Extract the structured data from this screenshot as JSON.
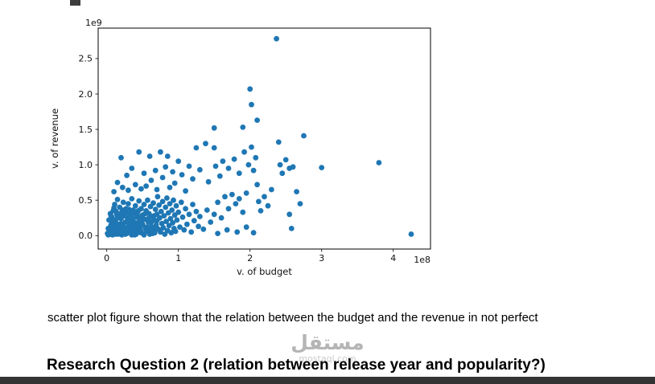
{
  "page": {
    "caption": "scatter plot figure shown that the relation between the budget and the revenue in not perfect",
    "heading": "Research Question 2 (relation between release year and popularity?)",
    "watermark": {
      "arabic": "مستقل",
      "domain": "mostaql.com"
    }
  },
  "chart_data": {
    "type": "scatter",
    "title": "",
    "xlabel": "v. of budget",
    "ylabel": "v. of revenue",
    "x_offset_label": "1e8",
    "y_offset_label": "1e9",
    "xtick_values": [
      0,
      1,
      2,
      3,
      4
    ],
    "xtick_labels": [
      "0",
      "1",
      "2",
      "3",
      "4"
    ],
    "ytick_values": [
      0,
      0.5,
      1,
      1.5,
      2,
      2.5
    ],
    "ytick_labels": [
      "0.0",
      "0.5",
      "1.0",
      "1.5",
      "2.0",
      "2.5"
    ],
    "xlim": [
      -0.12,
      4.52
    ],
    "ylim": [
      -0.19,
      2.93
    ],
    "grid": false,
    "legend": "none",
    "marker_color": "#1f77b4",
    "points": [
      [
        0.01,
        0.03
      ],
      [
        0.02,
        0.1
      ],
      [
        0.03,
        0.22
      ],
      [
        0.04,
        0.06
      ],
      [
        0.05,
        0.31
      ],
      [
        0.06,
        0.15
      ],
      [
        0.07,
        0.26
      ],
      [
        0.08,
        0.01
      ],
      [
        0.09,
        0.12
      ],
      [
        0.1,
        0.39
      ],
      [
        0.11,
        0.05
      ],
      [
        0.12,
        0.2
      ],
      [
        0.13,
        0.34
      ],
      [
        0.14,
        0.08
      ],
      [
        0.15,
        0.27
      ],
      [
        0.16,
        0.02
      ],
      [
        0.17,
        0.16
      ],
      [
        0.18,
        0.3
      ],
      [
        0.19,
        0.11
      ],
      [
        0.2,
        0.24
      ],
      [
        0.21,
        0.01
      ],
      [
        0.22,
        0.36
      ],
      [
        0.23,
        0.14
      ],
      [
        0.24,
        0.29
      ],
      [
        0.25,
        0.07
      ],
      [
        0.26,
        0.19
      ],
      [
        0.27,
        0.33
      ],
      [
        0.28,
        0.03
      ],
      [
        0.29,
        0.25
      ],
      [
        0.3,
        0.1
      ],
      [
        0.31,
        0.37
      ],
      [
        0.32,
        0.05
      ],
      [
        0.33,
        0.17
      ],
      [
        0.34,
        0.29
      ],
      [
        0.35,
        0.01
      ],
      [
        0.36,
        0.23
      ],
      [
        0.37,
        0.12
      ],
      [
        0.38,
        0.32
      ],
      [
        0.39,
        0.07
      ],
      [
        0.4,
        0.18
      ],
      [
        0.41,
        0.02
      ],
      [
        0.42,
        0.28
      ],
      [
        0.43,
        0.15
      ],
      [
        0.44,
        0.35
      ],
      [
        0.45,
        0.09
      ],
      [
        0.46,
        0.26
      ],
      [
        0.47,
        0.13
      ],
      [
        0.48,
        0.04
      ],
      [
        0.49,
        0.22
      ],
      [
        0.5,
        0.16
      ],
      [
        0.52,
        0.01
      ],
      [
        0.54,
        0.31
      ],
      [
        0.56,
        0.12
      ],
      [
        0.58,
        0.24
      ],
      [
        0.6,
        0.07
      ],
      [
        0.62,
        0.19
      ],
      [
        0.64,
        0.03
      ],
      [
        0.66,
        0.28
      ],
      [
        0.68,
        0.11
      ],
      [
        0.7,
        0.21
      ],
      [
        0.02,
        0.01
      ],
      [
        0.03,
        0.05
      ],
      [
        0.05,
        0.02
      ],
      [
        0.05,
        0.12
      ],
      [
        0.06,
        0.28
      ],
      [
        0.07,
        0.04
      ],
      [
        0.08,
        0.18
      ],
      [
        0.09,
        0.35
      ],
      [
        0.1,
        0.07
      ],
      [
        0.1,
        0.22
      ],
      [
        0.11,
        0.44
      ],
      [
        0.12,
        0.02
      ],
      [
        0.13,
        0.15
      ],
      [
        0.14,
        0.3
      ],
      [
        0.15,
        0.05
      ],
      [
        0.15,
        0.51
      ],
      [
        0.16,
        0.1
      ],
      [
        0.17,
        0.25
      ],
      [
        0.18,
        0.4
      ],
      [
        0.19,
        0.03
      ],
      [
        0.2,
        0.17
      ],
      [
        0.21,
        0.33
      ],
      [
        0.22,
        0.08
      ],
      [
        0.23,
        0.47
      ],
      [
        0.24,
        0.12
      ],
      [
        0.25,
        0.28
      ],
      [
        0.26,
        0.02
      ],
      [
        0.27,
        0.38
      ],
      [
        0.28,
        0.2
      ],
      [
        0.29,
        0.06
      ],
      [
        0.3,
        0.45
      ],
      [
        0.31,
        0.14
      ],
      [
        0.32,
        0.31
      ],
      [
        0.33,
        0.04
      ],
      [
        0.34,
        0.24
      ],
      [
        0.35,
        0.52
      ],
      [
        0.36,
        0.09
      ],
      [
        0.37,
        0.36
      ],
      [
        0.38,
        0.18
      ],
      [
        0.39,
        0.01
      ],
      [
        0.4,
        0.42
      ],
      [
        0.41,
        0.26
      ],
      [
        0.42,
        0.11
      ],
      [
        0.43,
        0.33
      ],
      [
        0.44,
        0.05
      ],
      [
        0.45,
        0.49
      ],
      [
        0.46,
        0.21
      ],
      [
        0.47,
        0.07
      ],
      [
        0.48,
        0.38
      ],
      [
        0.49,
        0.16
      ],
      [
        0.5,
        0.29
      ],
      [
        0.51,
        0.03
      ],
      [
        0.52,
        0.44
      ],
      [
        0.53,
        0.23
      ],
      [
        0.54,
        0.1
      ],
      [
        0.55,
        0.35
      ],
      [
        0.56,
        0.06
      ],
      [
        0.57,
        0.5
      ],
      [
        0.58,
        0.19
      ],
      [
        0.59,
        0.31
      ],
      [
        0.6,
        0.02
      ],
      [
        0.61,
        0.41
      ],
      [
        0.62,
        0.13
      ],
      [
        0.63,
        0.27
      ],
      [
        0.64,
        0.08
      ],
      [
        0.65,
        0.46
      ],
      [
        0.66,
        0.22
      ],
      [
        0.67,
        0.04
      ],
      [
        0.68,
        0.37
      ],
      [
        0.69,
        0.15
      ],
      [
        0.7,
        0.3
      ],
      [
        0.71,
        0.55
      ],
      [
        0.72,
        0.09
      ],
      [
        0.73,
        0.43
      ],
      [
        0.74,
        0.25
      ],
      [
        0.75,
        0.05
      ],
      [
        0.76,
        0.34
      ],
      [
        0.77,
        0.17
      ],
      [
        0.78,
        0.48
      ],
      [
        0.79,
        0.11
      ],
      [
        0.8,
        0.28
      ],
      [
        0.81,
        0.02
      ],
      [
        0.82,
        0.4
      ],
      [
        0.83,
        0.2
      ],
      [
        0.84,
        0.53
      ],
      [
        0.85,
        0.07
      ],
      [
        0.86,
        0.32
      ],
      [
        0.87,
        0.14
      ],
      [
        0.88,
        0.45
      ],
      [
        0.89,
        0.24
      ],
      [
        0.9,
        0.04
      ],
      [
        0.91,
        0.36
      ],
      [
        0.92,
        0.18
      ],
      [
        0.93,
        0.5
      ],
      [
        0.94,
        0.1
      ],
      [
        0.95,
        0.29
      ],
      [
        0.96,
        0.06
      ],
      [
        0.97,
        0.42
      ],
      [
        0.98,
        0.22
      ],
      [
        1.0,
        0.33
      ],
      [
        1.02,
        0.12
      ],
      [
        1.04,
        0.47
      ],
      [
        1.06,
        0.26
      ],
      [
        1.08,
        0.08
      ],
      [
        1.1,
        0.38
      ],
      [
        1.12,
        0.16
      ],
      [
        1.15,
        0.3
      ],
      [
        1.18,
        0.05
      ],
      [
        1.2,
        0.44
      ],
      [
        1.22,
        0.21
      ],
      [
        1.25,
        0.34
      ],
      [
        1.28,
        0.13
      ],
      [
        1.3,
        0.27
      ],
      [
        1.35,
        0.09
      ],
      [
        1.4,
        0.36
      ],
      [
        1.45,
        0.19
      ],
      [
        1.5,
        0.3
      ],
      [
        1.55,
        0.47
      ],
      [
        1.6,
        0.25
      ],
      [
        1.65,
        0.55
      ],
      [
        1.7,
        0.38
      ],
      [
        1.75,
        0.58
      ],
      [
        1.8,
        0.45
      ],
      [
        1.85,
        0.52
      ],
      [
        1.9,
        0.33
      ],
      [
        1.95,
        0.6
      ],
      [
        0.1,
        0.62
      ],
      [
        0.15,
        0.75
      ],
      [
        0.2,
        1.1
      ],
      [
        0.22,
        0.68
      ],
      [
        0.28,
        0.85
      ],
      [
        0.3,
        0.64
      ],
      [
        0.35,
        0.95
      ],
      [
        0.4,
        0.72
      ],
      [
        0.45,
        1.18
      ],
      [
        0.48,
        0.66
      ],
      [
        0.52,
        0.88
      ],
      [
        0.55,
        0.7
      ],
      [
        0.6,
        1.12
      ],
      [
        0.62,
        0.78
      ],
      [
        0.68,
        0.92
      ],
      [
        0.7,
        0.65
      ],
      [
        0.75,
        1.18
      ],
      [
        0.78,
        0.82
      ],
      [
        0.82,
        0.97
      ],
      [
        0.85,
        1.12
      ],
      [
        0.88,
        0.68
      ],
      [
        0.92,
        0.9
      ],
      [
        0.95,
        0.74
      ],
      [
        1.0,
        1.05
      ],
      [
        1.05,
        0.86
      ],
      [
        1.1,
        0.63
      ],
      [
        1.15,
        0.98
      ],
      [
        1.2,
        0.8
      ],
      [
        1.25,
        1.24
      ],
      [
        1.3,
        0.93
      ],
      [
        1.38,
        1.3
      ],
      [
        1.42,
        0.76
      ],
      [
        1.5,
        1.24
      ],
      [
        1.52,
        0.98
      ],
      [
        1.58,
        0.84
      ],
      [
        1.62,
        1.05
      ],
      [
        1.7,
        0.95
      ],
      [
        1.78,
        1.08
      ],
      [
        1.85,
        0.88
      ],
      [
        1.92,
        1.18
      ],
      [
        1.98,
        1.0
      ],
      [
        2.02,
        1.25
      ],
      [
        2.05,
        0.92
      ],
      [
        2.08,
        1.1
      ],
      [
        2.1,
        0.72
      ],
      [
        2.37,
        2.78
      ],
      [
        2.0,
        2.07
      ],
      [
        2.02,
        1.85
      ],
      [
        2.1,
        1.63
      ],
      [
        1.5,
        1.52
      ],
      [
        1.9,
        1.53
      ],
      [
        2.75,
        1.41
      ],
      [
        2.4,
        1.32
      ],
      [
        2.42,
        1.0
      ],
      [
        2.45,
        0.88
      ],
      [
        2.5,
        1.07
      ],
      [
        2.55,
        0.95
      ],
      [
        2.6,
        0.97
      ],
      [
        2.65,
        0.62
      ],
      [
        2.7,
        0.45
      ],
      [
        2.55,
        0.3
      ],
      [
        2.58,
        0.1
      ],
      [
        3.0,
        0.96
      ],
      [
        3.8,
        1.03
      ],
      [
        4.25,
        0.02
      ],
      [
        2.2,
        0.55
      ],
      [
        2.25,
        0.42
      ],
      [
        2.3,
        0.65
      ],
      [
        2.15,
        0.35
      ],
      [
        2.12,
        0.48
      ],
      [
        1.55,
        0.03
      ],
      [
        1.68,
        0.08
      ],
      [
        1.82,
        0.05
      ],
      [
        1.95,
        0.12
      ],
      [
        2.05,
        0.04
      ]
    ]
  }
}
